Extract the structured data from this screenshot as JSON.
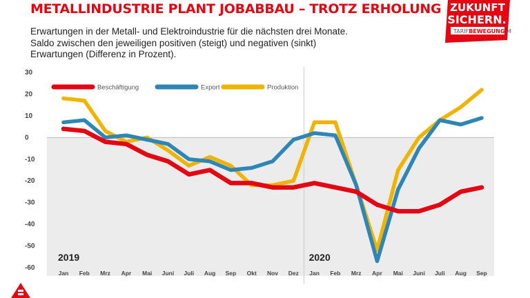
{
  "header": {
    "title": "METALLINDUSTRIE PLANT JOBABBAU – TROTZ ERHOLUNG",
    "subtitle_lines": [
      "Erwartungen in der Metall- und Elektroindustrie für die nächsten drei Monate.",
      "Saldo zwischen den jeweiligen positiven (steigt) und negativen (sinkt)",
      "Erwartungen (Differenz in Prozent)."
    ]
  },
  "badge": {
    "line1": "ZUKUNFT",
    "line2": "SICHERN.",
    "line3_a": "TARIF",
    "line3_b": "BEWEGUNG",
    "line3_c": ".ME"
  },
  "colors": {
    "brand": "#e30613",
    "besch": "#e30613",
    "export": "#2e86b7",
    "produktion": "#f0b400",
    "negative_bg": "#ececec"
  },
  "chart_data": {
    "type": "line",
    "categories": [
      "Jan",
      "Feb",
      "Mrz",
      "Apr",
      "Mai",
      "Juni",
      "Juli",
      "Aug",
      "Sep",
      "Okt",
      "Nov",
      "Dez",
      "Jan",
      "Feb",
      "Mrz",
      "Apr",
      "Mai",
      "Juni",
      "Juli",
      "Aug",
      "Sep"
    ],
    "year_labels": [
      {
        "label": "2019",
        "index": 0
      },
      {
        "label": "2020",
        "index": 12
      }
    ],
    "yticks": [
      30,
      20,
      10,
      0,
      -10,
      -20,
      -30,
      -40,
      -50,
      -60
    ],
    "ylim": [
      -60,
      30
    ],
    "grid": false,
    "legend": "top-left",
    "series": [
      {
        "name": "Beschäftigung",
        "color_key": "besch",
        "values": [
          4,
          3,
          -2,
          -3,
          -8,
          -11,
          -17,
          -15,
          -21,
          -21,
          -23,
          -23,
          -21,
          -23,
          -25,
          -31,
          -34,
          -34,
          -31,
          -25,
          -23
        ]
      },
      {
        "name": "Export",
        "color_key": "export",
        "values": [
          7,
          8,
          0,
          1,
          -1,
          -3,
          -10,
          -11,
          -15,
          -14,
          -11,
          -1,
          2,
          1,
          -22,
          -57,
          -24,
          -5,
          8,
          6,
          9
        ]
      },
      {
        "name": "Produktion",
        "color_key": "produktion",
        "values": [
          18,
          17,
          3,
          -2,
          0,
          -6,
          -13,
          -9,
          -13,
          -22,
          -22,
          -20,
          7,
          7,
          -22,
          -52,
          -15,
          0,
          8,
          14,
          22
        ]
      }
    ]
  }
}
